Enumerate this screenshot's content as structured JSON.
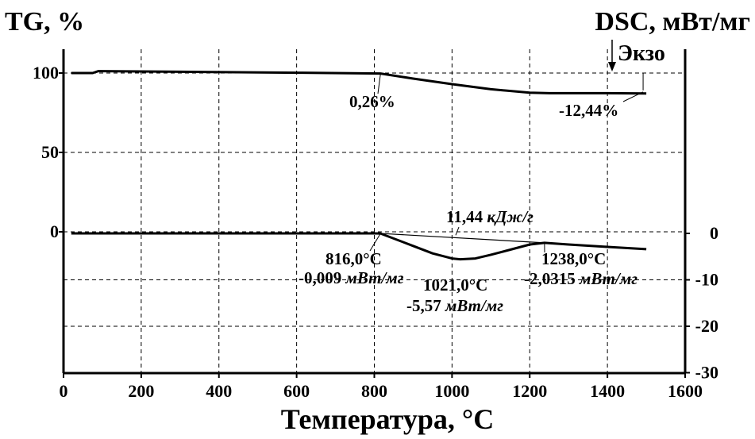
{
  "chart_data": {
    "type": "line",
    "title": "",
    "xlabel": "Температура, °С",
    "ylabel_left": "TG, %",
    "ylabel_right": "DSC, мВт/мг",
    "exo_label": "Экзо",
    "xlim": [
      0,
      1600
    ],
    "x_ticks": [
      "0",
      "200",
      "400",
      "600",
      "800",
      "1000",
      "1200",
      "1400",
      "1600"
    ],
    "y_left_ticks": [
      {
        "value": 100,
        "label": "100"
      },
      {
        "value": 50,
        "label": "50"
      },
      {
        "value": 0,
        "label": "0"
      }
    ],
    "y_right_ticks": [
      {
        "value": 0,
        "label": "0"
      },
      {
        "value": -10,
        "label": "-10"
      },
      {
        "value": -20,
        "label": "-20"
      },
      {
        "value": -30,
        "label": "-30"
      }
    ],
    "grid": true,
    "series": [
      {
        "axis": "left",
        "x": [
          20,
          75,
          90,
          300,
          600,
          816,
          900,
          1000,
          1100,
          1200,
          1250,
          1300,
          1400,
          1500
        ],
        "y": [
          100,
          100,
          101.2,
          100.8,
          100.2,
          99.7,
          96.5,
          93.0,
          89.8,
          87.6,
          87.3,
          87.3,
          87.3,
          87.1
        ]
      },
      {
        "axis": "right",
        "x": [
          20,
          200,
          400,
          600,
          800,
          816,
          900,
          950,
          1000,
          1021,
          1060,
          1100,
          1150,
          1200,
          1238,
          1300,
          1400,
          1500
        ],
        "y": [
          0,
          0,
          0,
          0,
          0,
          -0.009,
          -2.7,
          -4.3,
          -5.4,
          -5.57,
          -5.4,
          -4.6,
          -3.5,
          -2.4,
          -2.0315,
          -2.4,
          -2.9,
          -3.4
        ]
      }
    ],
    "annotations": [
      {
        "text": "0,26%",
        "x": 816,
        "axis": "left"
      },
      {
        "text": "-12,44%",
        "x": 1500,
        "axis": "left"
      },
      {
        "text": "11,44",
        "unit": "кДж/г"
      },
      {
        "text": "816,0°С",
        "x": 816
      },
      {
        "text": "-0,009",
        "unit": "мВт/мг",
        "x": 816
      },
      {
        "text": "1021,0°С",
        "x": 1021
      },
      {
        "text": "-5,57",
        "unit": "мВт/мг",
        "x": 1021
      },
      {
        "text": "1238,0°С",
        "x": 1238
      },
      {
        "text": "-2,0315",
        "unit": "мВт/мг",
        "x": 1238
      }
    ]
  }
}
